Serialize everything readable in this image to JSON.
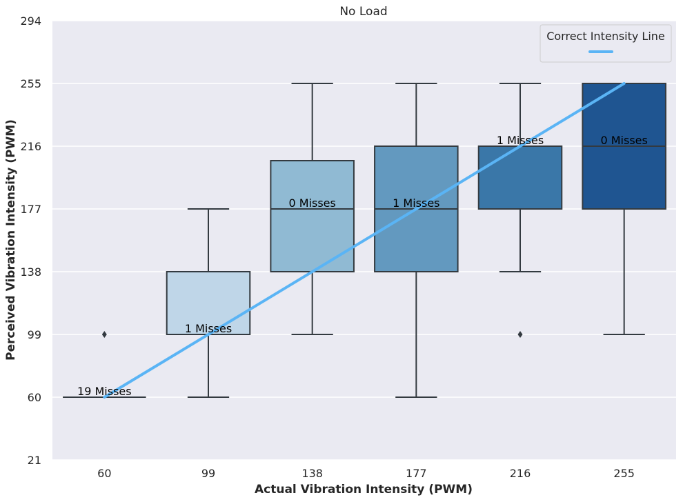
{
  "chart_data": {
    "type": "box",
    "title": "No Load",
    "xlabel": "Actual Vibration Intensity (PWM)",
    "ylabel": "Perceived Vibration Intensity (PWM)",
    "categories": [
      "60",
      "99",
      "138",
      "177",
      "216",
      "255"
    ],
    "ylim": [
      21,
      294
    ],
    "yticks": [
      21,
      60,
      99,
      138,
      177,
      216,
      255,
      294
    ],
    "grid": true,
    "boxes": [
      {
        "category": "60",
        "min": 60,
        "q1": 60,
        "median": 60,
        "q3": 60,
        "max": 60,
        "outliers": [
          99
        ],
        "misses_label": "19 Misses",
        "color": "#eaf2fb"
      },
      {
        "category": "99",
        "min": 60,
        "q1": 99,
        "median": 99,
        "q3": 138,
        "max": 177,
        "outliers": [],
        "misses_label": "1 Misses",
        "color": "#bfd6e8"
      },
      {
        "category": "138",
        "min": 99,
        "q1": 138,
        "median": 177,
        "q3": 207,
        "max": 255,
        "outliers": [],
        "misses_label": "0 Misses",
        "color": "#90bad3"
      },
      {
        "category": "177",
        "min": 60,
        "q1": 138,
        "median": 177,
        "q3": 216,
        "max": 255,
        "outliers": [],
        "misses_label": "1 Misses",
        "color": "#6399bf"
      },
      {
        "category": "216",
        "min": 138,
        "q1": 177,
        "median": 216,
        "q3": 216,
        "max": 255,
        "outliers": [
          99
        ],
        "misses_label": "1 Misses",
        "color": "#3a77a8"
      },
      {
        "category": "255",
        "min": 99,
        "q1": 177,
        "median": 216,
        "q3": 255,
        "max": 255,
        "outliers": [],
        "misses_label": "0 Misses",
        "color": "#1f5591"
      }
    ],
    "reference_line": {
      "name": "Correct Intensity Line",
      "x": [
        "60",
        "255"
      ],
      "y": [
        60,
        255
      ],
      "color": "#5ab4f5"
    },
    "legend": {
      "title": "Correct Intensity Line",
      "position": "top-right"
    },
    "background_color": "#eaeaf2",
    "grid_color": "#ffffff",
    "box_edge_color": "#333a40"
  }
}
